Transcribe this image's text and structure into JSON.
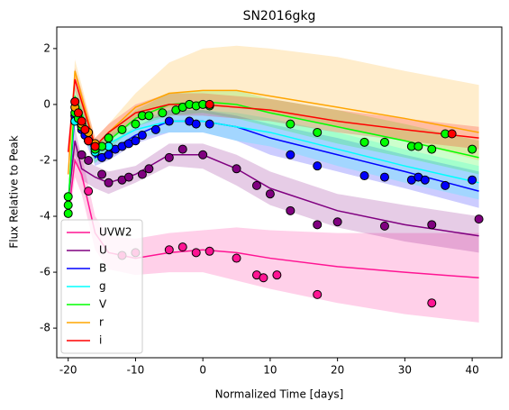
{
  "chart_data": {
    "type": "line",
    "title": "SN2016gkg",
    "x_label": "Normalized Time [days]",
    "y_label": "Flux Relative to Peak",
    "xlim": [
      -21.7,
      44.4
    ],
    "ylim": [
      -9.06,
      2.77
    ],
    "xticks": [
      -20,
      -10,
      0,
      10,
      20,
      30,
      40
    ],
    "yticks": [
      -8,
      -6,
      -4,
      -2,
      0,
      2
    ],
    "legend": "lower left",
    "x": [
      -20,
      -19,
      -18,
      -16,
      -14,
      -10,
      -5,
      0,
      5,
      10,
      20,
      30,
      41
    ],
    "series": [
      {
        "name": "UVW2",
        "color": "#ff1493",
        "values": [
          -4.0,
          -2.0,
          -2.5,
          -4.6,
          -5.3,
          -5.5,
          -5.3,
          -5.2,
          -5.3,
          -5.5,
          -5.8,
          -6.0,
          -6.2
        ],
        "band_low": [
          -4.3,
          -2.6,
          -3.2,
          -5.2,
          -5.9,
          -6.1,
          -6.0,
          -6.0,
          -6.3,
          -6.6,
          -7.1,
          -7.5,
          -7.8
        ],
        "band_high": [
          -3.6,
          -1.2,
          -1.8,
          -4.0,
          -4.7,
          -4.8,
          -4.6,
          -4.5,
          -4.4,
          -4.5,
          -4.6,
          -4.6,
          -4.6
        ],
        "obs_x": [
          -17,
          -12,
          -10,
          -5,
          -3,
          -1,
          1,
          5,
          8,
          9,
          11,
          17,
          34
        ],
        "obs_y": [
          -3.1,
          -5.4,
          -5.3,
          -5.2,
          -5.1,
          -5.3,
          -5.25,
          -5.5,
          -6.1,
          -6.2,
          -6.1,
          -6.8,
          -7.1
        ]
      },
      {
        "name": "U",
        "color": "#800080",
        "values": [
          -3.5,
          -1.3,
          -2.3,
          -2.6,
          -2.8,
          -2.5,
          -1.8,
          -1.8,
          -2.3,
          -3.0,
          -3.8,
          -4.3,
          -4.7
        ],
        "band_low": [
          -3.8,
          -1.8,
          -2.7,
          -3.0,
          -3.2,
          -2.8,
          -2.2,
          -2.3,
          -2.9,
          -3.6,
          -4.4,
          -4.9,
          -5.3
        ],
        "band_high": [
          -3.2,
          -0.8,
          -1.9,
          -2.2,
          -2.4,
          -2.2,
          -1.4,
          -1.4,
          -1.8,
          -2.4,
          -3.2,
          -3.6,
          -4.0
        ],
        "obs_x": [
          -18,
          -17,
          -15,
          -14,
          -12,
          -11,
          -9,
          -8,
          -5,
          -3,
          0,
          5,
          8,
          10,
          13,
          17,
          20,
          27,
          34,
          41
        ],
        "obs_y": [
          -1.8,
          -2.0,
          -2.5,
          -2.8,
          -2.7,
          -2.6,
          -2.5,
          -2.3,
          -1.9,
          -1.6,
          -1.8,
          -2.3,
          -2.9,
          -3.2,
          -3.8,
          -4.3,
          -4.2,
          -4.35,
          -4.3,
          -4.1
        ]
      },
      {
        "name": "B",
        "color": "#0000ff",
        "values": [
          -3.5,
          -0.3,
          -0.6,
          -1.9,
          -1.7,
          -1.1,
          -0.6,
          -0.6,
          -0.8,
          -1.2,
          -1.8,
          -2.4,
          -3.1
        ],
        "band_low": [
          -3.8,
          -0.7,
          -1.0,
          -2.2,
          -2.0,
          -1.4,
          -1.0,
          -1.0,
          -1.3,
          -1.8,
          -2.4,
          -3.0,
          -3.7
        ],
        "band_high": [
          -3.2,
          0.1,
          -0.2,
          -1.6,
          -1.4,
          -0.8,
          -0.2,
          -0.2,
          -0.4,
          -0.7,
          -1.2,
          -1.8,
          -2.4
        ],
        "obs_x": [
          -19,
          -18.5,
          -18,
          -17.5,
          -17,
          -16,
          -15,
          -14,
          -13,
          -12,
          -11,
          -10,
          -9,
          -7,
          -5,
          -2,
          -1,
          1,
          13,
          17,
          24,
          27,
          31,
          32,
          33,
          36,
          40
        ],
        "obs_y": [
          -0.4,
          -0.6,
          -0.9,
          -1.1,
          -1.3,
          -1.6,
          -1.9,
          -1.8,
          -1.6,
          -1.5,
          -1.4,
          -1.3,
          -1.1,
          -0.9,
          -0.6,
          -0.6,
          -0.7,
          -0.7,
          -1.8,
          -2.2,
          -2.55,
          -2.6,
          -2.7,
          -2.6,
          -2.7,
          -2.9,
          -2.7
        ]
      },
      {
        "name": "g",
        "color": "#00ffff",
        "values": [
          -3.5,
          0,
          -0.5,
          -1.8,
          -1.4,
          -0.9,
          -0.6,
          -0.6,
          -0.8,
          -1.0,
          -1.6,
          -2.2,
          -2.8
        ],
        "band_low": [
          -3.8,
          -0.4,
          -0.9,
          -2.1,
          -1.7,
          -1.2,
          -1.0,
          -1.0,
          -1.3,
          -1.5,
          -2.2,
          -2.8,
          -3.4
        ],
        "band_high": [
          -3.2,
          0.4,
          -0.1,
          -1.5,
          -1.1,
          -0.6,
          -0.2,
          -0.2,
          -0.3,
          -0.5,
          -1.0,
          -1.6,
          -2.2
        ],
        "obs_x": [
          -19,
          -18,
          -16,
          -14
        ],
        "obs_y": [
          -0.6,
          -0.8,
          -1.7,
          -1.5
        ]
      },
      {
        "name": "V",
        "color": "#00ff00",
        "values": [
          -3.6,
          0.3,
          -0.3,
          -1.8,
          -1.3,
          -0.5,
          0,
          0.1,
          0,
          -0.3,
          -0.8,
          -1.3,
          -1.9
        ],
        "band_low": [
          -3.9,
          -0.1,
          -0.7,
          -2.1,
          -1.6,
          -0.8,
          -0.4,
          -0.3,
          -0.5,
          -0.8,
          -1.4,
          -1.9,
          -2.5
        ],
        "band_high": [
          -3.3,
          0.7,
          0.1,
          -1.5,
          -1.0,
          -0.2,
          0.4,
          0.5,
          0.5,
          0.2,
          -0.2,
          -0.7,
          -1.3
        ],
        "obs_x": [
          -20,
          -20,
          -20,
          -19,
          -18.5,
          -18,
          -17,
          -16,
          -15,
          -14,
          -12,
          -10,
          -9,
          -8,
          -6,
          -4,
          -3,
          -2,
          -1,
          0,
          1,
          13,
          17,
          24,
          27,
          31,
          32,
          34,
          36,
          40
        ],
        "obs_y": [
          -3.3,
          -3.6,
          -3.9,
          -0.3,
          -0.5,
          -0.8,
          -1.3,
          -1.6,
          -1.5,
          -1.2,
          -0.9,
          -0.7,
          -0.4,
          -0.4,
          -0.3,
          -0.2,
          -0.1,
          0,
          -0.05,
          0,
          -0.05,
          -0.7,
          -1.0,
          -1.35,
          -1.35,
          -1.5,
          -1.5,
          -1.6,
          -1.05,
          -1.6
        ]
      },
      {
        "name": "r",
        "color": "#ffa500",
        "values": [
          -2.5,
          1.2,
          0.3,
          -1.5,
          -1.0,
          -0.1,
          0.4,
          0.5,
          0.5,
          0.3,
          -0.1,
          -0.5,
          -1.0
        ],
        "band_low": [
          -2.8,
          0.8,
          -0.1,
          -1.8,
          -1.3,
          -0.5,
          -0.1,
          -0.1,
          -0.1,
          -0.3,
          -0.8,
          -1.3,
          -2.0
        ],
        "band_high": [
          -2.2,
          1.6,
          0.7,
          -1.2,
          -0.7,
          0.4,
          1.5,
          2.0,
          2.1,
          2.0,
          1.7,
          1.2,
          0.7
        ],
        "obs_x": [
          -19,
          -18,
          -17,
          -16
        ],
        "obs_y": [
          -0.1,
          -0.7,
          -1.0,
          -1.4
        ]
      },
      {
        "name": "i",
        "color": "#ff0000",
        "values": [
          -1.7,
          0.9,
          0.1,
          -1.5,
          -1.0,
          -0.3,
          0,
          0,
          -0.1,
          -0.2,
          -0.6,
          -0.9,
          -1.2
        ],
        "band_low": [
          -2.0,
          0.5,
          -0.3,
          -1.8,
          -1.3,
          -0.6,
          -0.4,
          -0.4,
          -0.5,
          -0.6,
          -1.0,
          -1.3,
          -1.6
        ],
        "band_high": [
          -1.4,
          1.3,
          0.5,
          -1.2,
          -0.7,
          0,
          0.4,
          0.4,
          0.3,
          0.2,
          -0.2,
          -0.5,
          -0.8
        ],
        "obs_x": [
          -19,
          -18.5,
          -18,
          -17.5,
          -17,
          -16,
          1,
          37
        ],
        "obs_y": [
          0.1,
          -0.3,
          -0.6,
          -0.9,
          -1.3,
          -1.5,
          0,
          -1.05
        ]
      }
    ]
  }
}
